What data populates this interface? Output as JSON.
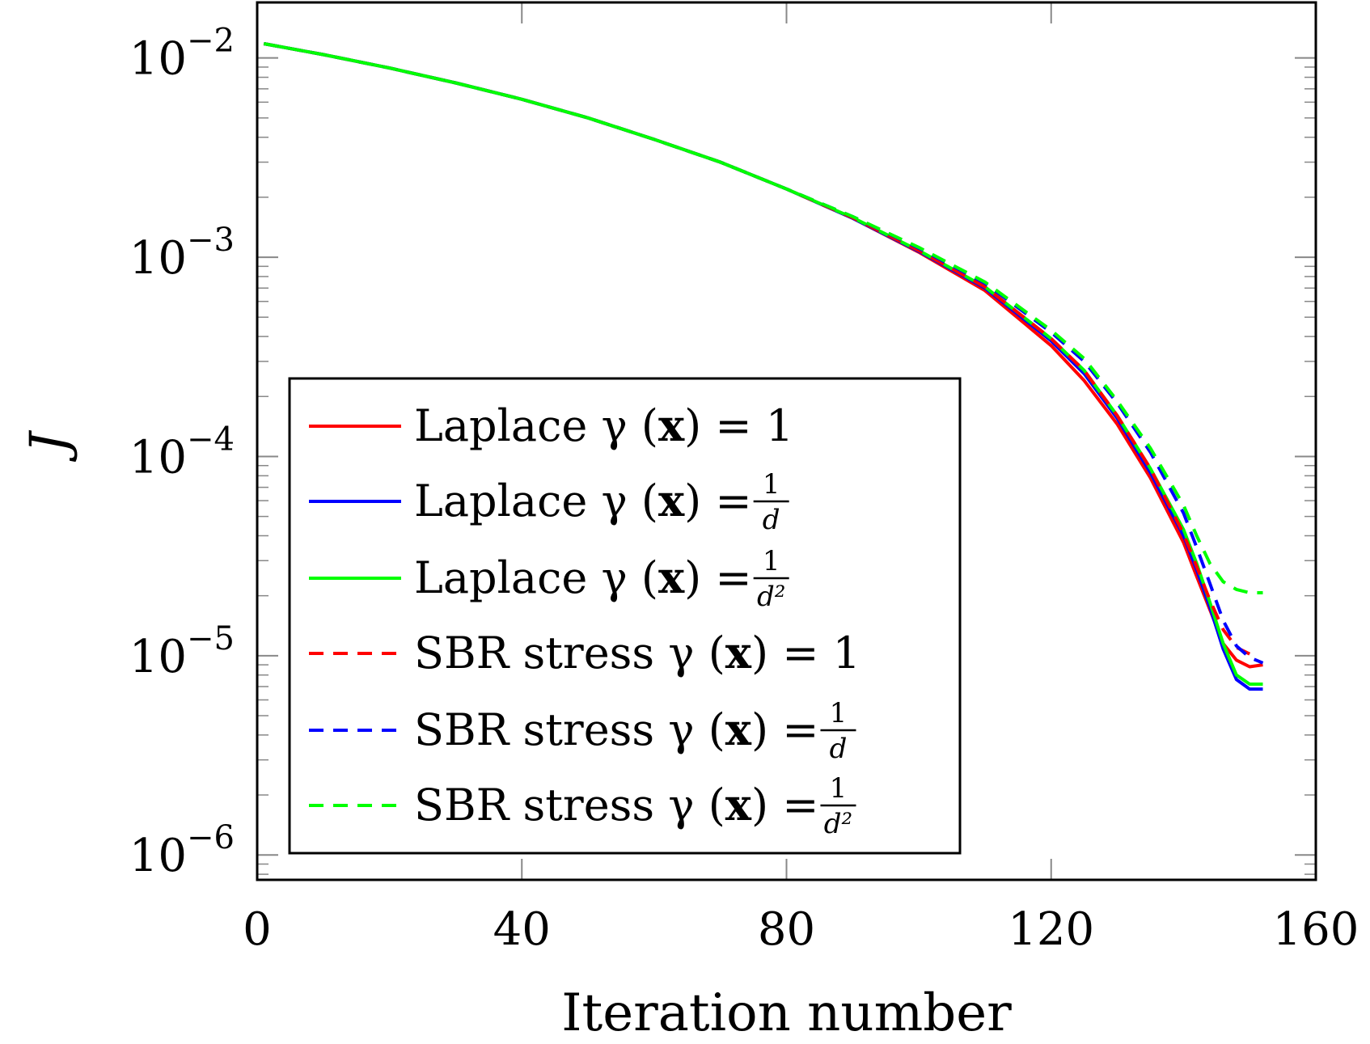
{
  "chart_data": {
    "type": "line",
    "xlabel": "Iteration number",
    "ylabel": "J",
    "xlim": [
      0,
      160
    ],
    "ylim": [
      7.5e-07,
      0.019
    ],
    "y_scale": "log",
    "grid": false,
    "legend_position": "bottom-left",
    "x_ticks": [
      {
        "value": 0,
        "label": "0"
      },
      {
        "value": 40,
        "label": "40"
      },
      {
        "value": 80,
        "label": "80"
      },
      {
        "value": 120,
        "label": "120"
      },
      {
        "value": 160,
        "label": "160"
      }
    ],
    "y_ticks": [
      {
        "value": 0.01,
        "base": "10",
        "exponent": "−2"
      },
      {
        "value": 0.001,
        "base": "10",
        "exponent": "−3"
      },
      {
        "value": 0.0001,
        "base": "10",
        "exponent": "−4"
      },
      {
        "value": 1e-05,
        "base": "10",
        "exponent": "−5"
      },
      {
        "value": 1e-06,
        "base": "10",
        "exponent": "−6"
      }
    ],
    "series": [
      {
        "name": "Laplace γ (x) = 1",
        "color": "#ff0000",
        "dash": "solid",
        "x": [
          1,
          10,
          20,
          30,
          40,
          50,
          60,
          70,
          80,
          90,
          100,
          110,
          120,
          125,
          130,
          135,
          140,
          142,
          144,
          146,
          148,
          150,
          152
        ],
        "y": [
          0.0118,
          0.0104,
          0.0089,
          0.0075,
          0.0062,
          0.005,
          0.0039,
          0.003,
          0.0022,
          0.00157,
          0.00106,
          0.00068,
          0.00036,
          0.00024,
          0.000145,
          7.8e-05,
          3.7e-05,
          2.5e-05,
          1.7e-05,
          1.15e-05,
          9.5e-06,
          8.8e-06,
          9e-06
        ]
      },
      {
        "name": "Laplace γ (x) = 1/d",
        "color": "#0000ff",
        "dash": "solid",
        "x": [
          1,
          10,
          20,
          30,
          40,
          50,
          60,
          70,
          80,
          90,
          100,
          110,
          120,
          125,
          130,
          135,
          140,
          142,
          144,
          146,
          148,
          150,
          152
        ],
        "y": [
          0.0118,
          0.0104,
          0.0089,
          0.0075,
          0.0062,
          0.005,
          0.0039,
          0.003,
          0.0022,
          0.00157,
          0.00107,
          0.0007,
          0.00038,
          0.00026,
          0.000155,
          8.3e-05,
          4e-05,
          2.7e-05,
          1.75e-05,
          1.08e-05,
          7.6e-06,
          6.8e-06,
          6.8e-06
        ]
      },
      {
        "name": "Laplace γ (x) = 1/d²",
        "color": "#00ff00",
        "dash": "solid",
        "x": [
          1,
          10,
          20,
          30,
          40,
          50,
          60,
          70,
          80,
          90,
          100,
          110,
          120,
          125,
          130,
          135,
          140,
          142,
          144,
          146,
          148,
          150,
          152
        ],
        "y": [
          0.0118,
          0.0104,
          0.0089,
          0.0075,
          0.0062,
          0.005,
          0.0039,
          0.003,
          0.0022,
          0.00158,
          0.00108,
          0.00071,
          0.00039,
          0.00027,
          0.00016,
          8.7e-05,
          4.3e-05,
          2.9e-05,
          1.85e-05,
          1.15e-05,
          8e-06,
          7.2e-06,
          7.2e-06
        ]
      },
      {
        "name": "SBR stress γ (x) = 1",
        "color": "#ff0000",
        "dash": "dashed",
        "x": [
          1,
          10,
          20,
          30,
          40,
          50,
          60,
          70,
          80,
          90,
          100,
          110,
          120,
          125,
          130,
          135,
          140,
          142,
          144,
          146,
          148,
          150
        ],
        "y": [
          0.0118,
          0.0104,
          0.0089,
          0.0075,
          0.0062,
          0.005,
          0.0039,
          0.003,
          0.0022,
          0.00158,
          0.00108,
          0.00071,
          0.00039,
          0.00027,
          0.00016,
          8.7e-05,
          4.1e-05,
          2.8e-05,
          1.9e-05,
          1.35e-05,
          1.1e-05,
          1.02e-05
        ]
      },
      {
        "name": "SBR stress γ (x) = 1/d",
        "color": "#0000ff",
        "dash": "dashed",
        "x": [
          1,
          10,
          20,
          30,
          40,
          50,
          60,
          70,
          80,
          90,
          100,
          110,
          120,
          125,
          130,
          135,
          140,
          142,
          144,
          146,
          148,
          150,
          152
        ],
        "y": [
          0.0118,
          0.0104,
          0.0089,
          0.0075,
          0.0062,
          0.005,
          0.0039,
          0.003,
          0.0022,
          0.0016,
          0.00111,
          0.00074,
          0.00042,
          0.0003,
          0.000185,
          0.000105,
          5.2e-05,
          3.5e-05,
          2.3e-05,
          1.5e-05,
          1.12e-05,
          9.8e-06,
          9.2e-06
        ]
      },
      {
        "name": "SBR stress γ (x) = 1/d²",
        "color": "#00ff00",
        "dash": "dashed",
        "x": [
          1,
          10,
          20,
          30,
          40,
          50,
          60,
          70,
          80,
          90,
          100,
          110,
          120,
          125,
          130,
          135,
          140,
          142,
          144,
          146,
          148,
          150,
          152
        ],
        "y": [
          0.0118,
          0.0104,
          0.0089,
          0.0075,
          0.0062,
          0.005,
          0.0039,
          0.003,
          0.0022,
          0.0016,
          0.00112,
          0.00075,
          0.00043,
          0.00031,
          0.00019,
          0.00011,
          5.7e-05,
          4e-05,
          2.9e-05,
          2.35e-05,
          2.15e-05,
          2.07e-05,
          2.07e-05
        ]
      }
    ],
    "legend": {
      "entries": [
        {
          "prefix": "Laplace γ (",
          "bold": "x",
          "mid": ") = ",
          "value": "1",
          "frac": false
        },
        {
          "prefix": "Laplace γ (",
          "bold": "x",
          "mid": ") = ",
          "num": "1",
          "den": "d",
          "frac": true
        },
        {
          "prefix": "Laplace γ (",
          "bold": "x",
          "mid": ") = ",
          "num": "1",
          "den": "d²",
          "frac": true
        },
        {
          "prefix": "SBR stress γ (",
          "bold": "x",
          "mid": ") = ",
          "value": "1",
          "frac": false
        },
        {
          "prefix": "SBR stress γ (",
          "bold": "x",
          "mid": ") = ",
          "num": "1",
          "den": "d",
          "frac": true
        },
        {
          "prefix": "SBR stress γ (",
          "bold": "x",
          "mid": ") = ",
          "num": "1",
          "den": "d²",
          "frac": true
        }
      ]
    }
  }
}
